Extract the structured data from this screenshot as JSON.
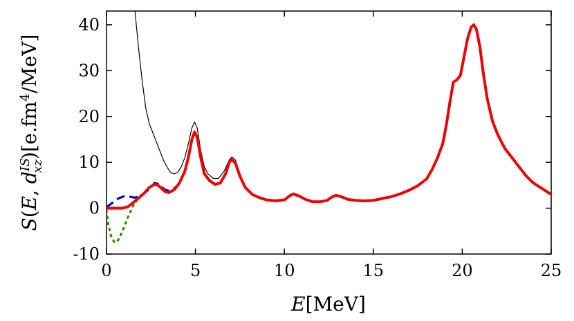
{
  "chart_data": {
    "type": "line",
    "xlabel": "E[MeV]",
    "ylabel": "S(E, d_xz^IS)[e.fm^4/MeV]",
    "xlim": [
      0,
      25
    ],
    "ylim": [
      -10,
      43
    ],
    "xticks": [
      "0",
      "5",
      "10",
      "15",
      "20",
      "25"
    ],
    "yticks": [
      "-10",
      "0",
      "10",
      "20",
      "30",
      "40"
    ],
    "xtick_values": [
      0,
      5,
      10,
      15,
      20,
      25
    ],
    "ytick_values": [
      -10,
      0,
      10,
      20,
      30,
      40
    ],
    "grid": false,
    "legend": "none",
    "series": [
      {
        "color": "#000000",
        "style": "solid",
        "width": 1.2,
        "points": [
          [
            1.6,
            43
          ],
          [
            1.8,
            35
          ],
          [
            2.0,
            28
          ],
          [
            2.2,
            22
          ],
          [
            2.4,
            18.5
          ],
          [
            2.6,
            16.5
          ],
          [
            2.8,
            14.5
          ],
          [
            3.0,
            12.5
          ],
          [
            3.2,
            10.5
          ],
          [
            3.4,
            9
          ],
          [
            3.6,
            7.8
          ],
          [
            3.8,
            7.5
          ],
          [
            4.0,
            7.8
          ],
          [
            4.2,
            9
          ],
          [
            4.4,
            11
          ],
          [
            4.6,
            14
          ],
          [
            4.8,
            17.5
          ],
          [
            4.95,
            18.8
          ],
          [
            5.1,
            17.5
          ],
          [
            5.3,
            12.5
          ],
          [
            5.5,
            9
          ],
          [
            5.7,
            7.5
          ],
          [
            6.0,
            6.5
          ],
          [
            6.3,
            6.5
          ],
          [
            6.6,
            8
          ],
          [
            6.9,
            10.5
          ],
          [
            7.05,
            11.2
          ],
          [
            7.25,
            10.5
          ],
          [
            7.5,
            7
          ],
          [
            7.8,
            4.5
          ],
          [
            8.2,
            3
          ],
          [
            8.6,
            2.5
          ],
          [
            9.0,
            2
          ],
          [
            9.5,
            1.8
          ],
          [
            10.0,
            2
          ],
          [
            10.3,
            2.8
          ],
          [
            10.5,
            3.2
          ],
          [
            10.8,
            2.8
          ],
          [
            11.2,
            2
          ],
          [
            11.6,
            1.5
          ],
          [
            12.0,
            1.5
          ],
          [
            12.4,
            1.8
          ],
          [
            12.7,
            2.6
          ],
          [
            12.9,
            2.9
          ],
          [
            13.2,
            2.6
          ],
          [
            13.6,
            2
          ],
          [
            14.0,
            1.8
          ],
          [
            14.5,
            1.7
          ],
          [
            15.0,
            1.8
          ],
          [
            15.5,
            2.2
          ],
          [
            16.0,
            2.6
          ],
          [
            16.5,
            3.2
          ],
          [
            17.0,
            4
          ],
          [
            17.5,
            5
          ],
          [
            18.0,
            6.5
          ],
          [
            18.3,
            8.5
          ],
          [
            18.6,
            11
          ],
          [
            18.9,
            14
          ],
          [
            19.1,
            18
          ],
          [
            19.3,
            23
          ],
          [
            19.5,
            27.5
          ],
          [
            19.7,
            28
          ],
          [
            19.9,
            29
          ],
          [
            20.1,
            33
          ],
          [
            20.3,
            37
          ],
          [
            20.5,
            39.5
          ],
          [
            20.65,
            40
          ],
          [
            20.8,
            39
          ],
          [
            21.0,
            35
          ],
          [
            21.2,
            29
          ],
          [
            21.4,
            24
          ],
          [
            21.7,
            19
          ],
          [
            22.0,
            16
          ],
          [
            22.4,
            13
          ],
          [
            22.8,
            11
          ],
          [
            23.2,
            9
          ],
          [
            23.6,
            7
          ],
          [
            24.0,
            5.5
          ],
          [
            24.4,
            4.5
          ],
          [
            24.8,
            3.5
          ],
          [
            25,
            3
          ]
        ]
      },
      {
        "color": "#2e8b00",
        "style": "dotted",
        "width": 3.2,
        "points": [
          [
            0,
            -0.5
          ],
          [
            0.1,
            -3.5
          ],
          [
            0.25,
            -6
          ],
          [
            0.45,
            -7.5
          ],
          [
            0.65,
            -7
          ],
          [
            0.9,
            -5
          ],
          [
            1.2,
            -2
          ],
          [
            1.5,
            0.5
          ],
          [
            1.8,
            2.2
          ],
          [
            2.1,
            3.5
          ]
        ]
      },
      {
        "color": "#0000cc",
        "style": "dashed",
        "width": 3.2,
        "points": [
          [
            0,
            0.2
          ],
          [
            0.2,
            0.8
          ],
          [
            0.45,
            1.5
          ],
          [
            0.7,
            2.2
          ],
          [
            1.0,
            2.6
          ],
          [
            1.3,
            2.5
          ],
          [
            1.6,
            2.3
          ],
          [
            1.9,
            2.6
          ],
          [
            2.2,
            3.5
          ],
          [
            2.5,
            4.5
          ],
          [
            2.7,
            5.5
          ],
          [
            2.9,
            5.3
          ],
          [
            3.1,
            4.6
          ],
          [
            3.3,
            4
          ],
          [
            3.5,
            3.8
          ],
          [
            3.8,
            4.3
          ],
          [
            4.0,
            5
          ]
        ]
      },
      {
        "color": "#ee0000",
        "style": "solid",
        "width": 4,
        "points": [
          [
            0,
            0
          ],
          [
            0.3,
            0
          ],
          [
            0.6,
            0
          ],
          [
            0.9,
            0
          ],
          [
            1.2,
            0.3
          ],
          [
            1.5,
            1.2
          ],
          [
            1.8,
            2.2
          ],
          [
            2.1,
            3.2
          ],
          [
            2.4,
            4.5
          ],
          [
            2.7,
            5.2
          ],
          [
            2.9,
            5
          ],
          [
            3.1,
            4.3
          ],
          [
            3.3,
            3.6
          ],
          [
            3.5,
            3.4
          ],
          [
            3.8,
            4
          ],
          [
            4.1,
            5.5
          ],
          [
            4.4,
            8
          ],
          [
            4.6,
            11
          ],
          [
            4.8,
            15
          ],
          [
            4.95,
            16.6
          ],
          [
            5.1,
            15.5
          ],
          [
            5.3,
            11
          ],
          [
            5.5,
            7.5
          ],
          [
            5.8,
            6
          ],
          [
            6.1,
            5.2
          ],
          [
            6.4,
            5.5
          ],
          [
            6.7,
            7.5
          ],
          [
            6.9,
            10
          ],
          [
            7.05,
            10.6
          ],
          [
            7.25,
            9.8
          ],
          [
            7.5,
            7
          ],
          [
            7.8,
            4.5
          ],
          [
            8.2,
            3
          ],
          [
            8.6,
            2.3
          ],
          [
            9.0,
            1.8
          ],
          [
            9.5,
            1.6
          ],
          [
            10.0,
            1.8
          ],
          [
            10.3,
            2.7
          ],
          [
            10.5,
            3.1
          ],
          [
            10.8,
            2.7
          ],
          [
            11.2,
            1.9
          ],
          [
            11.6,
            1.4
          ],
          [
            12.0,
            1.4
          ],
          [
            12.4,
            1.7
          ],
          [
            12.7,
            2.5
          ],
          [
            12.9,
            2.8
          ],
          [
            13.2,
            2.5
          ],
          [
            13.6,
            1.9
          ],
          [
            14.0,
            1.7
          ],
          [
            14.5,
            1.6
          ],
          [
            15.0,
            1.7
          ],
          [
            15.5,
            2.1
          ],
          [
            16.0,
            2.5
          ],
          [
            16.5,
            3.1
          ],
          [
            17.0,
            3.9
          ],
          [
            17.5,
            4.9
          ],
          [
            18.0,
            6.4
          ],
          [
            18.3,
            8.4
          ],
          [
            18.6,
            10.9
          ],
          [
            18.9,
            14
          ],
          [
            19.1,
            18
          ],
          [
            19.3,
            23
          ],
          [
            19.5,
            27.5
          ],
          [
            19.7,
            28
          ],
          [
            19.9,
            29
          ],
          [
            20.1,
            33
          ],
          [
            20.3,
            37
          ],
          [
            20.5,
            39.5
          ],
          [
            20.65,
            40
          ],
          [
            20.8,
            39
          ],
          [
            21.0,
            35
          ],
          [
            21.2,
            29
          ],
          [
            21.4,
            24
          ],
          [
            21.7,
            19
          ],
          [
            22.0,
            16
          ],
          [
            22.4,
            13
          ],
          [
            22.8,
            11
          ],
          [
            23.2,
            9
          ],
          [
            23.6,
            7
          ],
          [
            24.0,
            5.5
          ],
          [
            24.4,
            4.5
          ],
          [
            24.8,
            3.5
          ],
          [
            25,
            3
          ]
        ]
      }
    ]
  }
}
